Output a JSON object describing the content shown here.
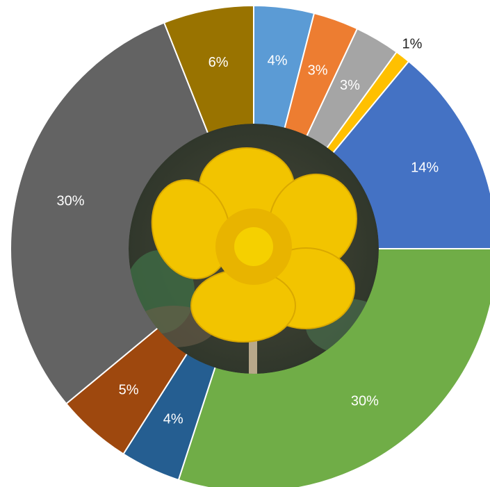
{
  "chart_data": {
    "type": "donut",
    "categories": [
      null,
      null,
      null,
      null,
      null,
      null,
      null,
      null,
      null,
      null
    ],
    "values": [
      4,
      3,
      3,
      1,
      14,
      30,
      4,
      5,
      30,
      6
    ],
    "value_labels": [
      "4%",
      "3%",
      "3%",
      "1%",
      "14%",
      "30%",
      "4%",
      "5%",
      "30%",
      "6%"
    ],
    "colors": [
      "#5b9bd5",
      "#ed7d31",
      "#a5a5a5",
      "#ffc000",
      "#4472c4",
      "#70ad47",
      "#255e91",
      "#9e480e",
      "#636363",
      "#997300"
    ]
  }
}
